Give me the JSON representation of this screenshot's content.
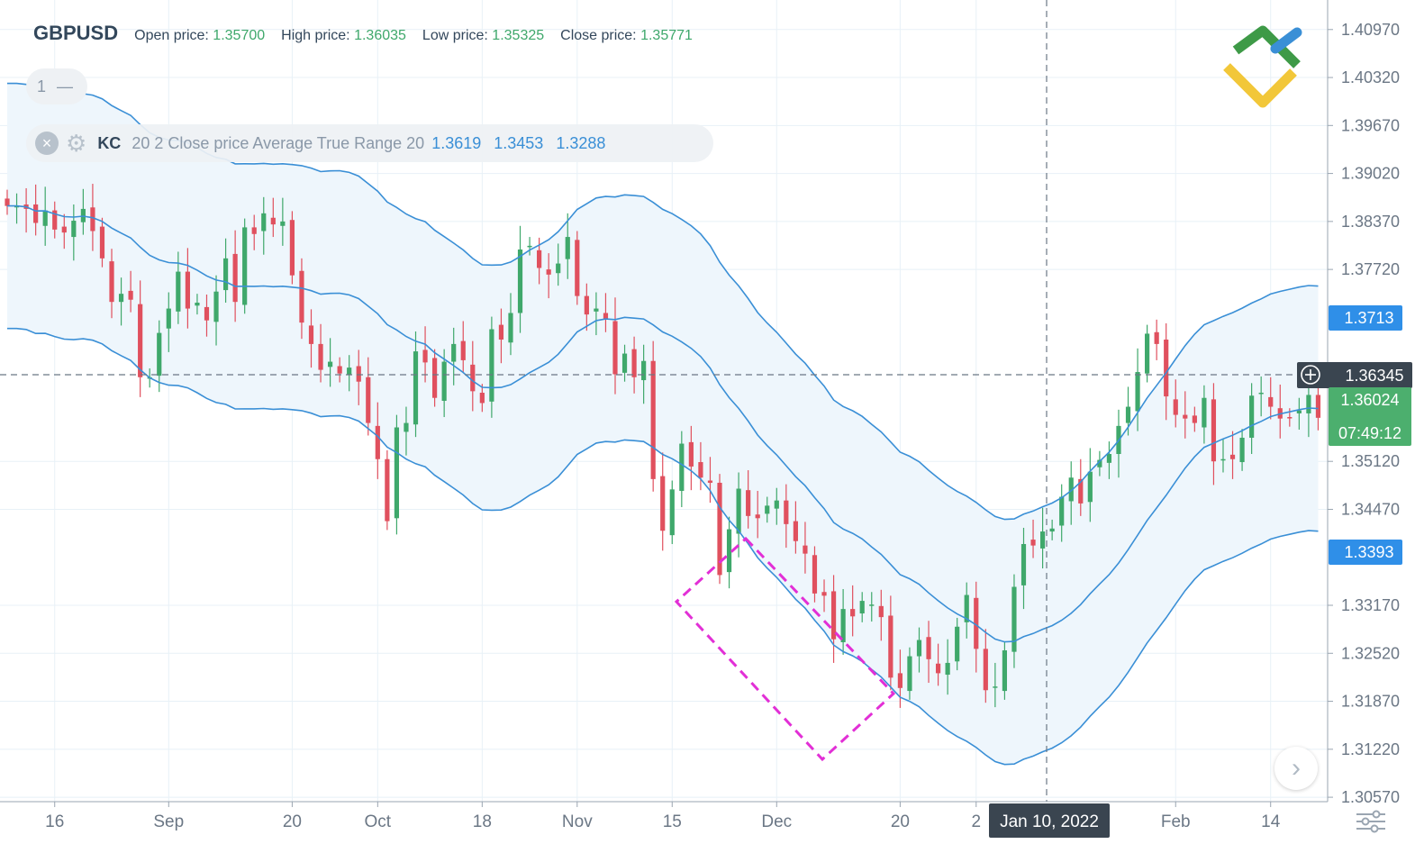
{
  "header": {
    "symbol": "GBPUSD",
    "open_label": "Open price:",
    "open_value": "1.35700",
    "high_label": "High price:",
    "high_value": "1.36035",
    "low_label": "Low price:",
    "low_value": "1.35325",
    "close_label": "Close price:",
    "close_value": "1.35771"
  },
  "pane": {
    "label": "1",
    "collapse_icon": "minus-icon"
  },
  "indicator": {
    "name": "KC",
    "params": "20 2 Close price Average True Range 20",
    "upper": "1.3619",
    "middle": "1.3453",
    "lower": "1.3288",
    "close_icon": "close-icon",
    "settings_icon": "gear-icon"
  },
  "price_badges": {
    "upper_band": "1.3713",
    "crosshair": "1.36345",
    "last_price": "1.36024",
    "countdown": "07:49:12",
    "lower_band": "1.3393"
  },
  "crosshair_date": "Jan 10, 2022",
  "colors": {
    "bull": "#3fa86b",
    "bear": "#e0505e",
    "band": "#3a8fd6",
    "band_fill": "#eef6fc",
    "annotation": "#e22fd6",
    "grid": "#e8f1f7"
  },
  "chart_data": {
    "type": "candlestick",
    "symbol": "GBPUSD",
    "y_ticks": [
      1.4097,
      1.4032,
      1.3967,
      1.3902,
      1.3837,
      1.3772,
      1.3512,
      1.3447,
      1.3317,
      1.3252,
      1.3187,
      1.3122,
      1.3057
    ],
    "y_tick_labels": [
      "1.40970",
      "1.40320",
      "1.39670",
      "1.39020",
      "1.38370",
      "1.37720",
      "1.35120",
      "1.34470",
      "1.33170",
      "1.32520",
      "1.31870",
      "1.31220",
      "1.30570"
    ],
    "ylim": [
      1.3051,
      1.4137
    ],
    "x_tick_labels": [
      "16",
      "Sep",
      "20",
      "Oct",
      "18",
      "Nov",
      "15",
      "Dec",
      "20",
      "2",
      "Feb",
      "14"
    ],
    "x_tick_index": [
      5,
      17,
      30,
      39,
      50,
      60,
      70,
      81,
      94,
      102,
      123,
      133
    ],
    "bar_count": 139,
    "close": [
      1.3858,
      1.3858,
      1.3854,
      1.3835,
      1.3852,
      1.3826,
      1.3822,
      1.3838,
      1.3854,
      1.3824,
      1.3787,
      1.3728,
      1.3739,
      1.3731,
      1.3626,
      1.3626,
      1.3686,
      1.3719,
      1.3769,
      1.3719,
      1.3727,
      1.3703,
      1.3742,
      1.3787,
      1.3728,
      1.3829,
      1.382,
      1.3848,
      1.3833,
      1.3837,
      1.3764,
      1.37,
      1.3671,
      1.3636,
      1.3647,
      1.3631,
      1.3639,
      1.362,
      1.3564,
      1.3515,
      1.3431,
      1.3558,
      1.3564,
      1.3661,
      1.3646,
      1.3598,
      1.3647,
      1.3671,
      1.3649,
      1.3607,
      1.3591,
      1.3691,
      1.3677,
      1.3713,
      1.3799,
      1.3804,
      1.3774,
      1.3765,
      1.378,
      1.3816,
      1.3736,
      1.3711,
      1.3719,
      1.3704,
      1.363,
      1.3658,
      1.3626,
      1.3648,
      1.3488,
      1.3418,
      1.3474,
      1.3536,
      1.3505,
      1.349,
      1.3483,
      1.3358,
      1.342,
      1.3475,
      1.3438,
      1.3435,
      1.3452,
      1.3459,
      1.3427,
      1.3404,
      1.3387,
      1.3333,
      1.333,
      1.3271,
      1.3312,
      1.3302,
      1.3323,
      1.3318,
      1.3301,
      1.3219,
      1.3205,
      1.3248,
      1.327,
      1.3244,
      1.3225,
      1.3239,
      1.3288,
      1.3331,
      1.3258,
      1.3202,
      1.3207,
      1.3256,
      1.3342,
      1.34,
      1.3398,
      1.3417,
      1.3421,
      1.3464,
      1.349,
      1.3455,
      1.3498,
      1.3514,
      1.3522,
      1.356,
      1.3586,
      1.3633,
      1.3685,
      1.3671,
      1.36,
      1.3575,
      1.357,
      1.3564,
      1.3598,
      1.3512,
      1.3515,
      1.3515,
      1.3544,
      1.3601,
      1.3605,
      1.3586,
      1.357,
      1.3571,
      1.3581,
      1.3602,
      1.3571
    ]
  }
}
